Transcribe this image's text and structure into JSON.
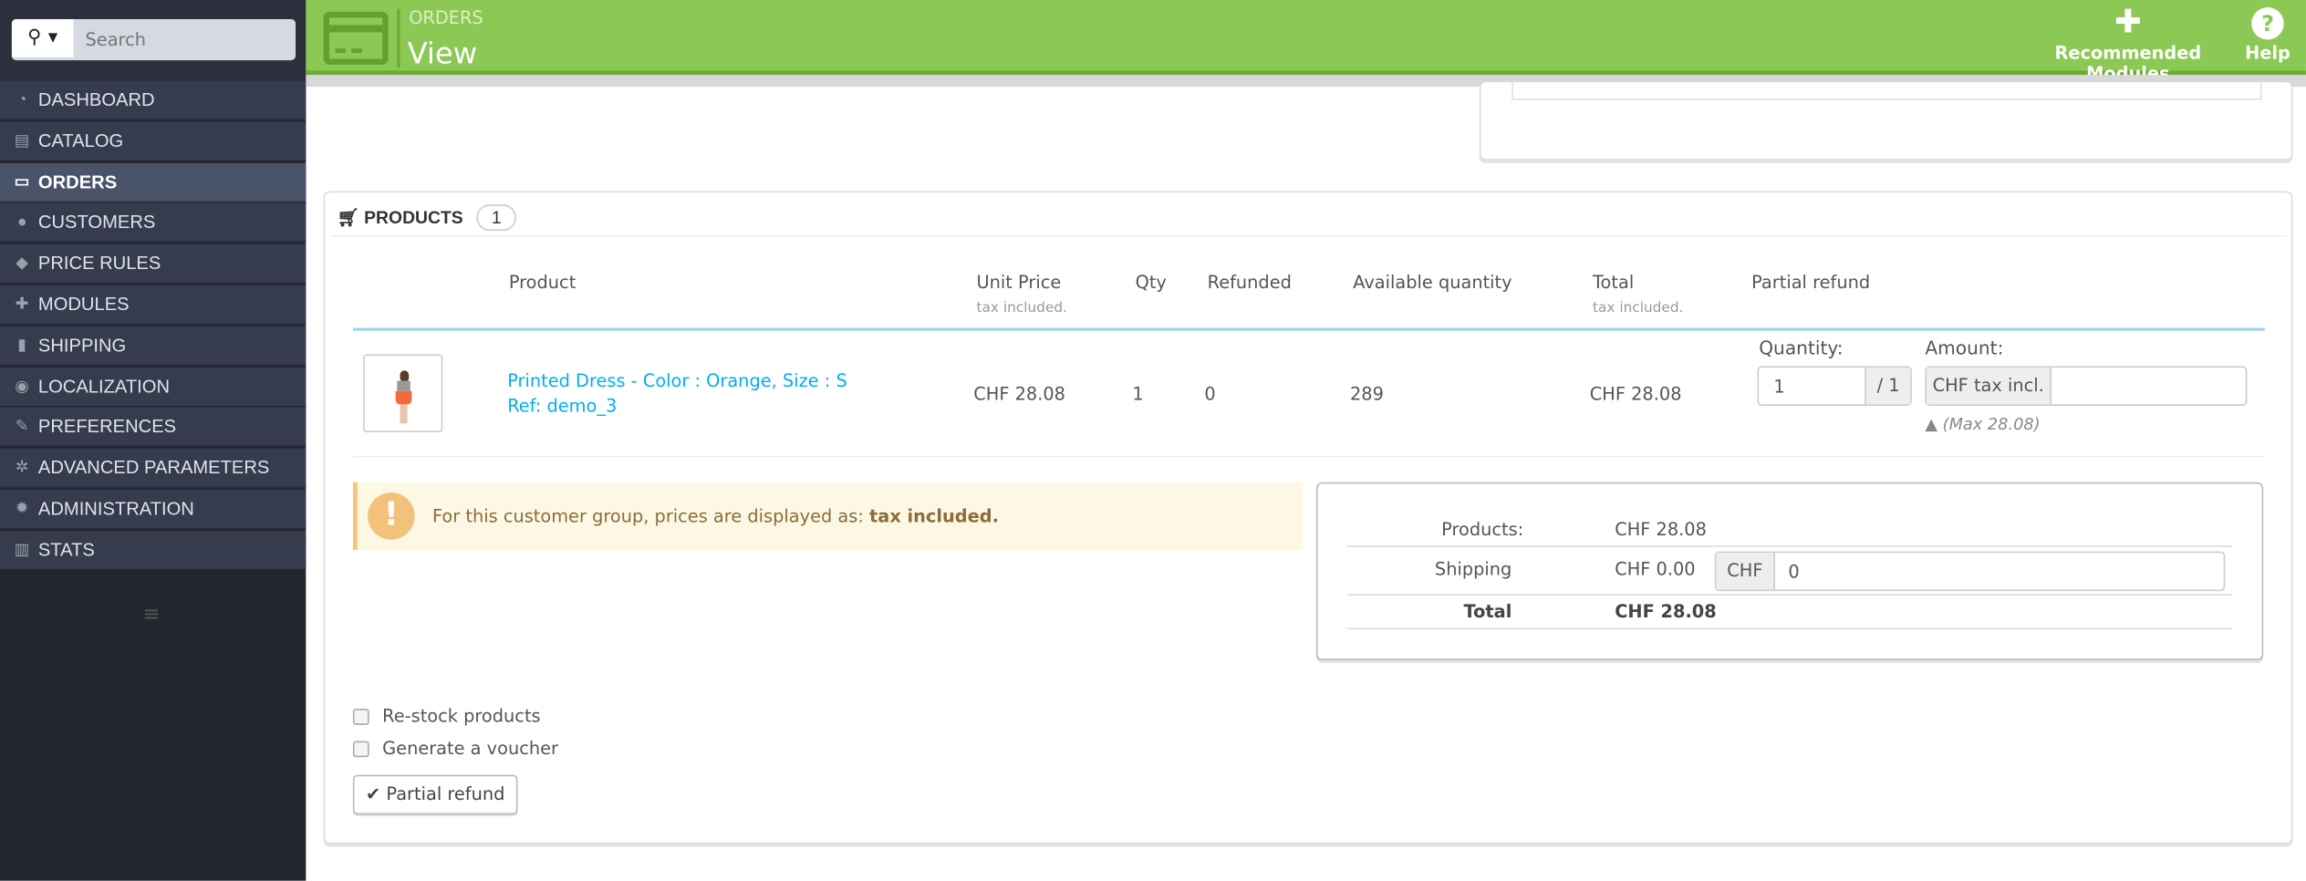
{
  "sidebar": {
    "search": {
      "placeholder": "Search",
      "icon": "search-icon"
    },
    "items": [
      {
        "label": "DASHBOARD",
        "icon": "dashboard-icon",
        "glyph": "◔"
      },
      {
        "label": "CATALOG",
        "icon": "book-icon",
        "glyph": "▤"
      },
      {
        "label": "ORDERS",
        "icon": "credit-card-icon",
        "glyph": "▭",
        "active": true
      },
      {
        "label": "CUSTOMERS",
        "icon": "users-icon",
        "glyph": "●"
      },
      {
        "label": "PRICE RULES",
        "icon": "tags-icon",
        "glyph": "◆"
      },
      {
        "label": "MODULES",
        "icon": "puzzle-icon",
        "glyph": "✚"
      },
      {
        "label": "SHIPPING",
        "icon": "truck-icon",
        "glyph": "▮"
      },
      {
        "label": "LOCALIZATION",
        "icon": "globe-icon",
        "glyph": "◉"
      },
      {
        "label": "PREFERENCES",
        "icon": "wrench-icon",
        "glyph": "✎"
      },
      {
        "label": "ADVANCED PARAMETERS",
        "icon": "cogs-icon",
        "glyph": "✲"
      },
      {
        "label": "ADMINISTRATION",
        "icon": "cog-icon",
        "glyph": "✹"
      },
      {
        "label": "STATS",
        "icon": "bar-chart-icon",
        "glyph": "▥"
      }
    ]
  },
  "header": {
    "section": "ORDERS",
    "title": "View",
    "recommended": "Recommended Modules",
    "help": "Help"
  },
  "products": {
    "title": "PRODUCTS",
    "count": "1",
    "columns": {
      "product": "Product",
      "unit_price": "Unit Price",
      "unit_price_sub": "tax included.",
      "qty": "Qty",
      "refunded": "Refunded",
      "available": "Available quantity",
      "total": "Total",
      "total_sub": "tax included.",
      "partial": "Partial refund"
    },
    "row": {
      "name": "Printed Dress - Color : Orange, Size : S",
      "ref": "Ref: demo_3",
      "unit_price": "CHF 28.08",
      "qty": "1",
      "refunded": "0",
      "available": "289",
      "total": "CHF 28.08",
      "quantity_label": "Quantity:",
      "quantity_value": "1",
      "quantity_max": "/ 1",
      "amount_label": "Amount:",
      "amount_addon": "CHF tax incl.",
      "amount_value": "",
      "max": "(Max 28.08)"
    },
    "notice": {
      "text": "For this customer group, prices are displayed as: ",
      "bold": "tax included."
    },
    "totals": {
      "products_label": "Products:",
      "products_value": "CHF 28.08",
      "shipping_label": "Shipping",
      "shipping_value": "CHF 0.00",
      "shipping_addon": "CHF",
      "shipping_input": "0",
      "total_label": "Total",
      "total_value": "CHF 28.08"
    },
    "restock": "Re-stock products",
    "voucher": "Generate a voucher",
    "button": "Partial refund"
  },
  "colors": {
    "header": "#8bc954",
    "sidebar": "#363c4d",
    "link": "#00aff0",
    "warning": "#fcf8e3"
  }
}
